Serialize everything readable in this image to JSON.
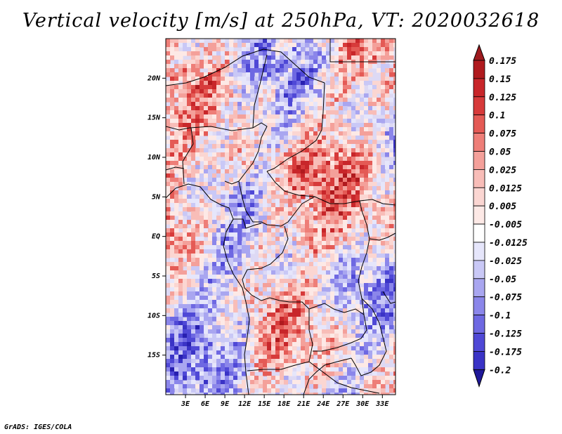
{
  "title": "Vertical velocity [m/s] at 250hPa, VT: 2020032618",
  "credit": "GrADS: IGES/COLA",
  "map": {
    "lon_range": [
      0,
      35
    ],
    "lat_range": [
      -20,
      25
    ],
    "lat_ticks": [
      {
        "value": 20,
        "label": "20N"
      },
      {
        "value": 15,
        "label": "15N"
      },
      {
        "value": 10,
        "label": "10N"
      },
      {
        "value": 5,
        "label": "5N"
      },
      {
        "value": 0,
        "label": "EQ"
      },
      {
        "value": -5,
        "label": "5S"
      },
      {
        "value": -10,
        "label": "10S"
      },
      {
        "value": -15,
        "label": "15S"
      }
    ],
    "lon_ticks": [
      {
        "value": 3,
        "label": "3E"
      },
      {
        "value": 6,
        "label": "6E"
      },
      {
        "value": 9,
        "label": "9E"
      },
      {
        "value": 12,
        "label": "12E"
      },
      {
        "value": 15,
        "label": "15E"
      },
      {
        "value": 18,
        "label": "18E"
      },
      {
        "value": 21,
        "label": "21E"
      },
      {
        "value": 24,
        "label": "24E"
      },
      {
        "value": 27,
        "label": "27E"
      },
      {
        "value": 30,
        "label": "30E"
      },
      {
        "value": 33,
        "label": "33E"
      }
    ]
  },
  "colorbar": {
    "levels": [
      {
        "label": "0.175",
        "color": "#b01a1e"
      },
      {
        "label": "0.15",
        "color": "#c8262a"
      },
      {
        "label": "0.125",
        "color": "#d73a3a"
      },
      {
        "label": "0.1",
        "color": "#e45a55"
      },
      {
        "label": "0.075",
        "color": "#ee7e78"
      },
      {
        "label": "0.05",
        "color": "#f4a09a"
      },
      {
        "label": "0.025",
        "color": "#f8bdb8"
      },
      {
        "label": "0.0125",
        "color": "#fbd6d2"
      },
      {
        "label": "0.005",
        "color": "#fde9e6"
      },
      {
        "label": "-0.005",
        "color": "#ffffff"
      },
      {
        "label": "-0.0125",
        "color": "#e6e6fb"
      },
      {
        "label": "-0.025",
        "color": "#c9c8f6"
      },
      {
        "label": "-0.05",
        "color": "#a9a6f0"
      },
      {
        "label": "-0.075",
        "color": "#8b86ea"
      },
      {
        "label": "-0.1",
        "color": "#6e68e2"
      },
      {
        "label": "-0.125",
        "color": "#4f48d6"
      },
      {
        "label": "-0.175",
        "color": "#3a33c6"
      },
      {
        "label": "-0.2",
        "color": "#2820b0"
      }
    ],
    "top_color": "#9e1a1e",
    "bottom_color": "#1f1899"
  }
}
